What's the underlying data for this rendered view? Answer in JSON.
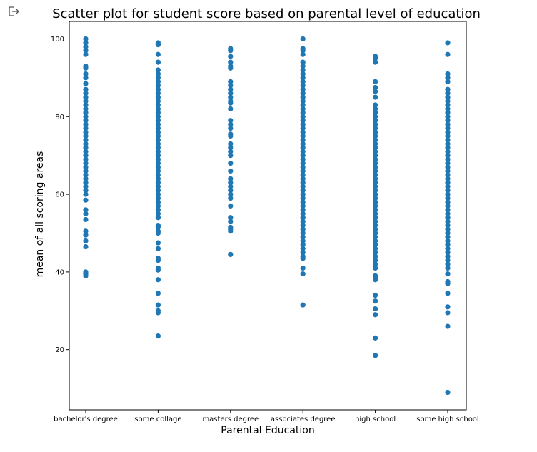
{
  "output_icon": "output-arrow-icon",
  "chart_data": {
    "type": "scatter",
    "title": "Scatter plot for student score based on parental level of education",
    "xlabel": "Parental Education",
    "ylabel": "mean of all scoring areas",
    "categories": [
      "bachelor's degree",
      "some collage",
      "masters degree",
      "associates degree",
      "high school",
      "some high school"
    ],
    "ylim": [
      4.5,
      104.5
    ],
    "yticks": [
      20,
      40,
      60,
      80,
      100
    ],
    "grid": false,
    "color": "#1f77b4",
    "series": [
      {
        "category": "bachelor's degree",
        "values": [
          100,
          99,
          98,
          97,
          96,
          93,
          92.5,
          91,
          90,
          88.5,
          87,
          86,
          85,
          84,
          83,
          82,
          81,
          80,
          79,
          78,
          77,
          76,
          75,
          74,
          73,
          72,
          71,
          70,
          69,
          68,
          67,
          66,
          65,
          64,
          63,
          62,
          61,
          60,
          58.5,
          56,
          55,
          53.5,
          50.5,
          49.5,
          48,
          46.5,
          40,
          39.5,
          39
        ]
      },
      {
        "category": "some collage",
        "values": [
          99,
          98.5,
          96,
          94,
          92,
          91,
          90,
          89,
          88,
          87,
          86,
          85,
          84,
          83,
          82,
          81,
          80,
          79,
          78,
          77,
          76,
          75,
          74,
          73,
          72,
          71,
          70,
          69,
          68,
          67,
          66,
          65,
          64,
          63,
          62,
          61,
          60,
          59,
          58,
          57,
          56,
          55,
          54,
          52,
          51.5,
          50.5,
          50,
          47.5,
          46,
          43.5,
          43,
          41,
          40.5,
          38,
          34.5,
          31.5,
          30,
          29.5,
          23.5
        ]
      },
      {
        "category": "masters degree",
        "values": [
          97.5,
          97,
          95.5,
          94,
          93,
          92.5,
          89,
          88,
          87,
          86,
          85,
          84,
          83.5,
          82,
          79,
          78,
          77,
          75.5,
          75,
          73,
          72,
          71,
          70,
          68,
          66,
          64,
          63,
          62,
          61,
          60,
          59,
          57,
          54,
          53,
          51.5,
          51,
          50.5,
          44.5
        ]
      },
      {
        "category": "associates degree",
        "values": [
          100,
          97.5,
          97,
          96,
          94,
          93,
          92,
          91,
          90,
          89,
          88,
          87,
          86,
          85,
          84,
          83,
          82,
          81,
          80,
          79,
          78,
          77,
          76,
          75,
          74,
          73,
          72,
          71,
          70,
          69,
          68,
          67,
          66,
          65,
          64,
          63,
          62,
          61,
          60,
          59,
          58,
          57,
          56,
          55,
          54,
          53,
          52,
          51,
          50,
          49,
          48,
          47,
          46,
          45,
          44,
          43.5,
          41,
          39.5,
          31.5
        ]
      },
      {
        "category": "high school",
        "values": [
          95.5,
          95,
          94,
          89,
          87.5,
          86.5,
          85,
          83,
          82,
          81,
          80,
          79,
          78,
          77,
          76,
          75,
          74,
          73,
          72,
          71,
          70,
          69,
          68,
          67,
          66,
          65,
          64,
          63,
          62,
          61,
          60,
          59,
          58,
          57,
          56,
          55,
          54,
          53,
          52,
          51,
          50,
          49,
          48,
          47,
          46,
          45,
          44,
          43,
          42,
          41,
          39,
          38.5,
          38,
          34,
          32.5,
          30.5,
          29,
          23,
          18.5
        ]
      },
      {
        "category": "some high school",
        "values": [
          99,
          96,
          91,
          90,
          89,
          87,
          86,
          85,
          84,
          83,
          82,
          81,
          80,
          79,
          78,
          77,
          76,
          75,
          74,
          73,
          72,
          71,
          70,
          69,
          68,
          67,
          66,
          65,
          64,
          63,
          62,
          61,
          60,
          59,
          58,
          57,
          56,
          55,
          54,
          53,
          52,
          51,
          50,
          49,
          48,
          47,
          46,
          45,
          44,
          43,
          42,
          41,
          39.5,
          37.5,
          37,
          34.5,
          31,
          29.5,
          26,
          9
        ]
      }
    ]
  }
}
